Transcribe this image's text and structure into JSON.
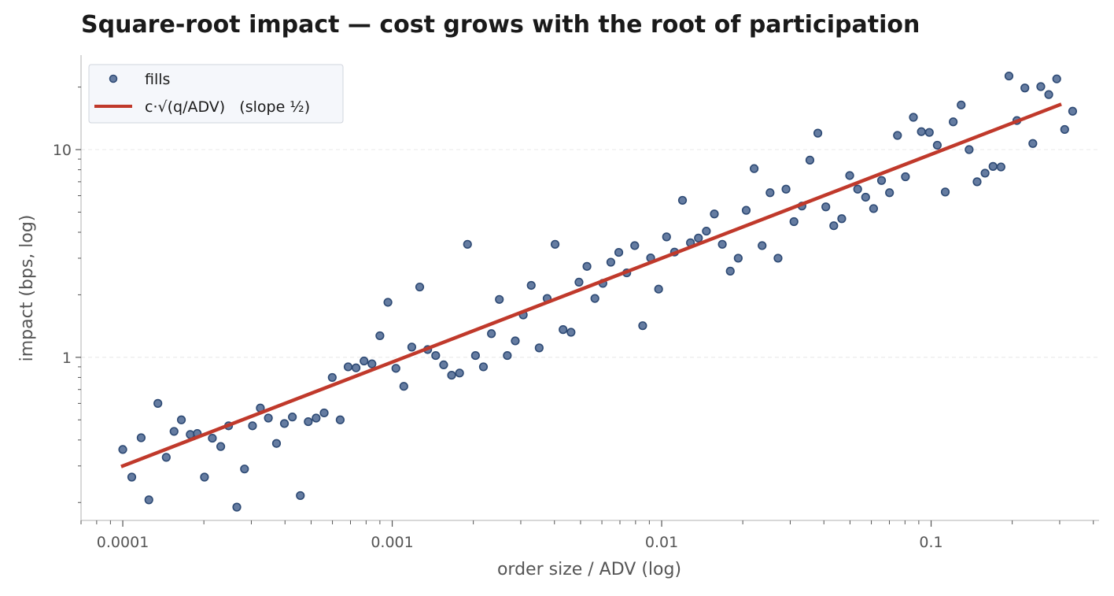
{
  "chart_data": {
    "type": "scatter",
    "title": "Square-root impact — cost grows with the root of participation",
    "xlabel": "order size / ADV (log)",
    "ylabel": "impact (bps, log)",
    "xscale": "log",
    "yscale": "log",
    "xlim": [
      7e-05,
      0.42
    ],
    "ylim": [
      0.164,
      28.5
    ],
    "xticks": [
      {
        "value": 0.0001,
        "label": "0.0001"
      },
      {
        "value": 0.001,
        "label": "0.001"
      },
      {
        "value": 0.01,
        "label": "0.01"
      },
      {
        "value": 0.1,
        "label": "0.1"
      }
    ],
    "yticks": [
      {
        "value": 1,
        "label": "1"
      },
      {
        "value": 10,
        "label": "10"
      }
    ],
    "grid": "horizontal, faint dashed",
    "legend_position": "top-left",
    "colors": {
      "fills": "#4a6591",
      "fills_edge": "#2e4a74",
      "fit": "#c0392b",
      "axis": "#cccccc",
      "text": "#555555"
    },
    "series": [
      {
        "name": "fills",
        "kind": "scatter",
        "points": [
          [
            0.0001,
            0.36
          ],
          [
            0.000108,
            0.265
          ],
          [
            0.000117,
            0.41
          ],
          [
            0.000125,
            0.206
          ],
          [
            0.000135,
            0.6
          ],
          [
            0.000145,
            0.33
          ],
          [
            0.000155,
            0.44
          ],
          [
            0.000165,
            0.5
          ],
          [
            0.000178,
            0.425
          ],
          [
            0.000189,
            0.43
          ],
          [
            0.000201,
            0.265
          ],
          [
            0.000215,
            0.408
          ],
          [
            0.000231,
            0.372
          ],
          [
            0.000247,
            0.468
          ],
          [
            0.000265,
            0.19
          ],
          [
            0.000283,
            0.29
          ],
          [
            0.000303,
            0.468
          ],
          [
            0.000324,
            0.57
          ],
          [
            0.000347,
            0.51
          ],
          [
            0.000372,
            0.385
          ],
          [
            0.000398,
            0.48
          ],
          [
            0.000426,
            0.516
          ],
          [
            0.000456,
            0.216
          ],
          [
            0.000488,
            0.49
          ],
          [
            0.000522,
            0.51
          ],
          [
            0.000559,
            0.54
          ],
          [
            0.000599,
            0.8
          ],
          [
            0.000641,
            0.5
          ],
          [
            0.000686,
            0.9
          ],
          [
            0.000734,
            0.89
          ],
          [
            0.000786,
            0.96
          ],
          [
            0.000841,
            0.93
          ],
          [
            0.0009,
            1.27
          ],
          [
            0.000964,
            1.84
          ],
          [
            0.001032,
            0.885
          ],
          [
            0.001104,
            0.725
          ],
          [
            0.001182,
            1.12
          ],
          [
            0.001265,
            2.18
          ],
          [
            0.001354,
            1.09
          ],
          [
            0.00145,
            1.02
          ],
          [
            0.001552,
            0.92
          ],
          [
            0.001661,
            0.82
          ],
          [
            0.001778,
            0.84
          ],
          [
            0.001903,
            3.5
          ],
          [
            0.002037,
            1.02
          ],
          [
            0.00218,
            0.9
          ],
          [
            0.002334,
            1.3
          ],
          [
            0.002498,
            1.9
          ],
          [
            0.002674,
            1.02
          ],
          [
            0.002862,
            1.2
          ],
          [
            0.003064,
            1.6
          ],
          [
            0.00328,
            2.22
          ],
          [
            0.003511,
            1.11
          ],
          [
            0.003758,
            1.92
          ],
          [
            0.004022,
            3.5
          ],
          [
            0.004306,
            1.36
          ],
          [
            0.004609,
            1.32
          ],
          [
            0.004933,
            2.3
          ],
          [
            0.005281,
            2.74
          ],
          [
            0.005652,
            1.92
          ],
          [
            0.00605,
            2.27
          ],
          [
            0.006476,
            2.87
          ],
          [
            0.006932,
            3.2
          ],
          [
            0.00742,
            2.55
          ],
          [
            0.007943,
            3.45
          ],
          [
            0.008502,
            1.42
          ],
          [
            0.009101,
            3.01
          ],
          [
            0.009742,
            2.13
          ],
          [
            0.010427,
            3.8
          ],
          [
            0.011161,
            3.21
          ],
          [
            0.011947,
            5.7
          ],
          [
            0.012788,
            3.56
          ],
          [
            0.013689,
            3.75
          ],
          [
            0.014653,
            4.05
          ],
          [
            0.015685,
            4.9
          ],
          [
            0.016789,
            3.5
          ],
          [
            0.017971,
            2.6
          ],
          [
            0.019237,
            3.0
          ],
          [
            0.020591,
            5.1
          ],
          [
            0.022041,
            8.1
          ],
          [
            0.023593,
            3.45
          ],
          [
            0.025254,
            6.2
          ],
          [
            0.027032,
            3.0
          ],
          [
            0.028936,
            6.45
          ],
          [
            0.030973,
            4.5
          ],
          [
            0.033154,
            5.35
          ],
          [
            0.035489,
            8.9
          ],
          [
            0.037987,
            12.0
          ],
          [
            0.040662,
            5.3
          ],
          [
            0.043525,
            4.3
          ],
          [
            0.04659,
            4.65
          ],
          [
            0.04987,
            7.5
          ],
          [
            0.053382,
            6.45
          ],
          [
            0.05714,
            5.9
          ],
          [
            0.061163,
            5.2
          ],
          [
            0.06547,
            7.1
          ],
          [
            0.070079,
            6.2
          ],
          [
            0.075014,
            11.7
          ],
          [
            0.080296,
            7.4
          ],
          [
            0.085949,
            14.3
          ],
          [
            0.092001,
            12.2
          ],
          [
            0.098479,
            12.1
          ],
          [
            0.105413,
            10.5
          ],
          [
            0.112835,
            6.25
          ],
          [
            0.120779,
            13.6
          ],
          [
            0.129284,
            16.4
          ],
          [
            0.138386,
            10.0
          ],
          [
            0.148131,
            7.0
          ],
          [
            0.158561,
            7.7
          ],
          [
            0.169725,
            8.3
          ],
          [
            0.181676,
            8.25
          ],
          [
            0.194468,
            22.6
          ],
          [
            0.208161,
            13.8
          ],
          [
            0.222818,
            19.8
          ],
          [
            0.238507,
            10.7
          ],
          [
            0.255301,
            20.1
          ],
          [
            0.273277,
            18.4
          ],
          [
            0.292519,
            21.9
          ],
          [
            0.313116,
            12.5
          ],
          [
            0.33516,
            15.3
          ]
        ]
      },
      {
        "name": "c·√(q/ADV)   (slope ½)",
        "kind": "line",
        "points": [
          [
            0.0001,
            0.3
          ],
          [
            0.3,
            16.43
          ]
        ]
      }
    ]
  }
}
